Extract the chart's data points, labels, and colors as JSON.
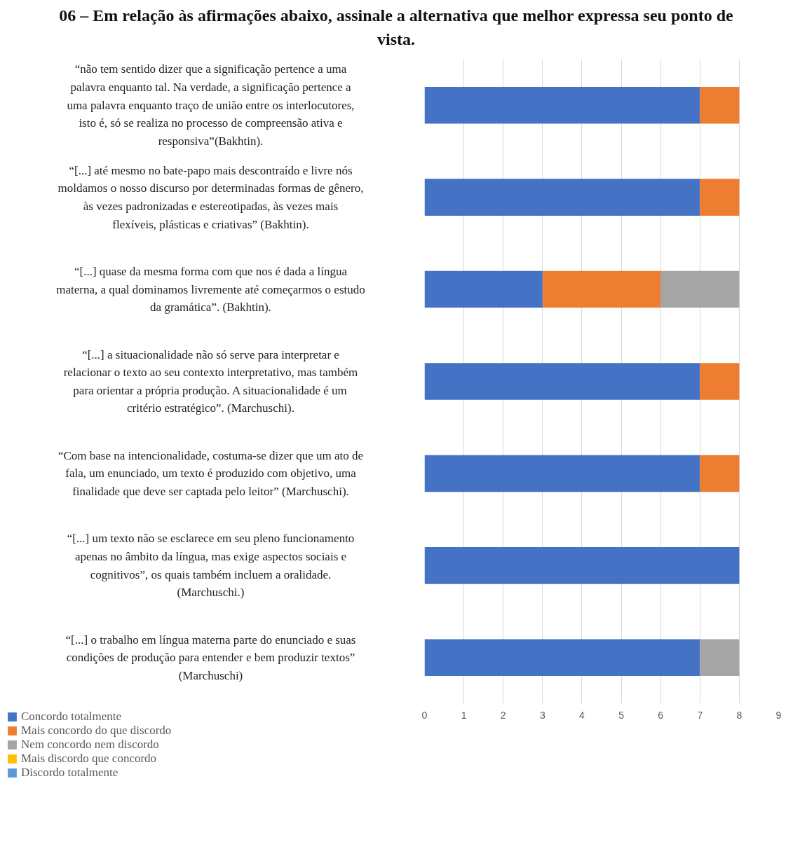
{
  "chart_data": {
    "type": "bar",
    "orientation": "horizontal",
    "stacked": true,
    "title": "06 – Em relação às afirmações abaixo, assinale a alternativa que melhor expressa seu ponto de vista.",
    "categories": [
      "“não tem sentido dizer que a significação pertence a uma palavra enquanto tal. Na verdade, a significação pertence a uma palavra enquanto traço de união entre os interlocutores, isto é, só se realiza no processo de compreensão ativa e responsiva”(Bakhtin).",
      "“[...] até mesmo no bate-papo mais descontraído e livre nós moldamos o nosso discurso por determinadas formas de gênero, às vezes padronizadas e estereotipadas, às vezes mais flexíveis, plásticas e criativas” (Bakhtin).",
      "“[...] quase da mesma forma com que nos é dada a língua materna, a qual dominamos livremente até começarmos o estudo da gramática”. (Bakhtin).",
      "“[...] a situacionalidade não só serve para interpretar e relacionar o texto ao seu contexto interpretativo, mas também para orientar a própria produção. A situacionalidade é um critério estratégico”. (Marchuschi).",
      "“Com base na intencionalidade, costuma-se dizer que um ato de fala, um enunciado, um texto é produzido com objetivo, uma finalidade que deve ser captada pelo leitor” (Marchuschi).",
      "“[...] um texto não se esclarece em seu pleno funcionamento apenas no âmbito da língua, mas exige aspectos sociais e cognitivos”, os quais também incluem a oralidade. (Marchuschi.)",
      "“[...] o trabalho em língua materna parte do enunciado e suas condições de produção para entender e bem produzir textos” (Marchuschi)"
    ],
    "series": [
      {
        "name": "Concordo totalmente",
        "color": "#4472c4",
        "values": [
          7,
          7,
          3,
          7,
          7,
          8,
          7
        ]
      },
      {
        "name": "Mais concordo do que discordo",
        "color": "#ed7d31",
        "values": [
          1,
          1,
          3,
          1,
          1,
          0,
          0
        ]
      },
      {
        "name": "Nem concordo nem discordo",
        "color": "#a5a5a5",
        "values": [
          0,
          0,
          2,
          0,
          0,
          0,
          1
        ]
      },
      {
        "name": "Mais discordo que concordo",
        "color": "#ffc000",
        "values": [
          0,
          0,
          0,
          0,
          0,
          0,
          0
        ]
      },
      {
        "name": "Discordo totalmente",
        "color": "#5b9bd5",
        "values": [
          0,
          0,
          0,
          0,
          0,
          0,
          0
        ]
      }
    ],
    "xlim": [
      0,
      9
    ],
    "xticks": [
      0,
      1,
      2,
      3,
      4,
      5,
      6,
      7,
      8,
      9
    ],
    "grid": "x",
    "legend": "bottom left"
  }
}
